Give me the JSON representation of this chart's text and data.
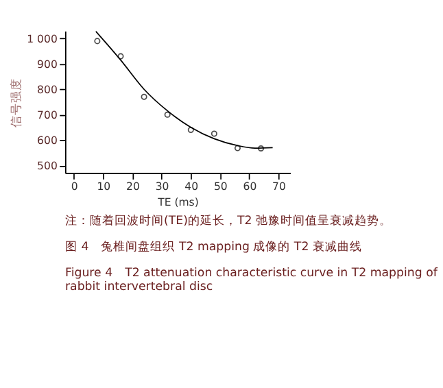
{
  "chart_data": {
    "type": "scatter",
    "xlabel": "TE (ms)",
    "ylabel": "信号强度",
    "xlim": [
      -3,
      74
    ],
    "ylim": [
      470,
      1030
    ],
    "xticks": [
      0,
      10,
      20,
      30,
      40,
      50,
      60,
      70
    ],
    "yticks": [
      500,
      600,
      700,
      800,
      900,
      {
        "value": 1000,
        "label": "1 000"
      }
    ],
    "marker": "circle",
    "grid": false,
    "series": [
      {
        "color": "#000000",
        "x": [
          8,
          16,
          24,
          32,
          40,
          48,
          56,
          64
        ],
        "values": [
          990,
          930,
          770,
          700,
          640,
          625,
          568,
          567
        ]
      },
      {
        "type": "line",
        "color": "#000000",
        "marker": "none",
        "line_style": "solid",
        "x": [
          7.5,
          16,
          24,
          32,
          40,
          48,
          56,
          62,
          68
        ],
        "values": [
          1028,
          915,
          800,
          715,
          650,
          605,
          578,
          568,
          570
        ]
      }
    ],
    "annotations": [
      "注：随着回波时间(TE)的延长，T2 弛豫时间值呈衰减趋势。",
      "图 4　兔椎间盘组织 T2 mapping 成像的 T2 衰减曲线",
      "Figure 4　T2 attenuation characteristic curve in T2 mapping of rabbit intervertebral disc"
    ]
  }
}
